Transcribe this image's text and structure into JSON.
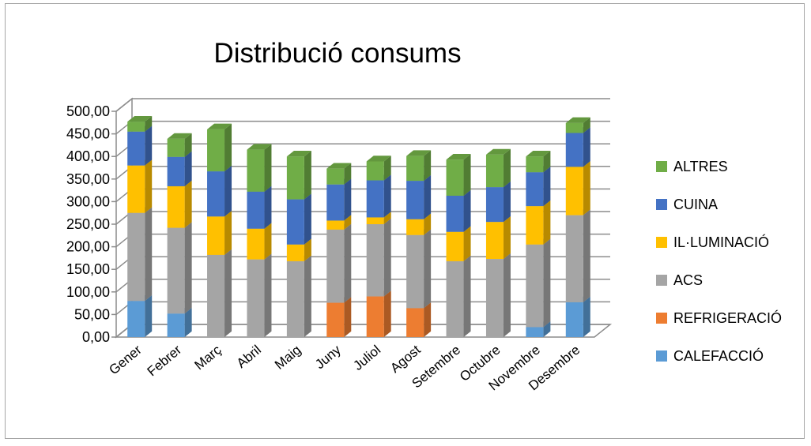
{
  "chart_data": {
    "type": "bar",
    "stacked": true,
    "three_d": true,
    "title": "Distribució consums",
    "categories": [
      "Gener",
      "Febrer",
      "Març",
      "Abril",
      "Maig",
      "Juny",
      "Juliol",
      "Agost",
      "Setembre",
      "Octubre",
      "Novembre",
      "Desembre"
    ],
    "ylim": [
      0,
      500
    ],
    "yticks": [
      "0,00",
      "50,00",
      "100,00",
      "150,00",
      "200,00",
      "250,00",
      "300,00",
      "350,00",
      "400,00",
      "450,00",
      "500,00"
    ],
    "grid": true,
    "legend_position": "right",
    "series": [
      {
        "name": "CALEFACCIÓ",
        "color": "#5b9bd5",
        "values": [
          80,
          52,
          0,
          0,
          0,
          0,
          0,
          0,
          0,
          0,
          22,
          77
        ]
      },
      {
        "name": "REFRIGERACIÓ",
        "color": "#ed7d31",
        "values": [
          0,
          0,
          0,
          0,
          0,
          76,
          90,
          64,
          0,
          0,
          0,
          0
        ]
      },
      {
        "name": "ACS",
        "color": "#a5a5a5",
        "values": [
          195,
          190,
          182,
          172,
          168,
          162,
          160,
          162,
          168,
          173,
          183,
          193
        ]
      },
      {
        "name": "IL·LUMINACIÓ",
        "color": "#ffc000",
        "values": [
          105,
          92,
          85,
          68,
          37,
          20,
          15,
          35,
          65,
          82,
          85,
          107
        ]
      },
      {
        "name": "CUINA",
        "color": "#4472c4",
        "values": [
          75,
          65,
          100,
          82,
          100,
          80,
          82,
          85,
          80,
          77,
          75,
          75
        ]
      },
      {
        "name": "ALTRES",
        "color": "#70ad47",
        "values": [
          22,
          40,
          93,
          93,
          95,
          35,
          42,
          55,
          80,
          72,
          35,
          22
        ]
      }
    ]
  }
}
